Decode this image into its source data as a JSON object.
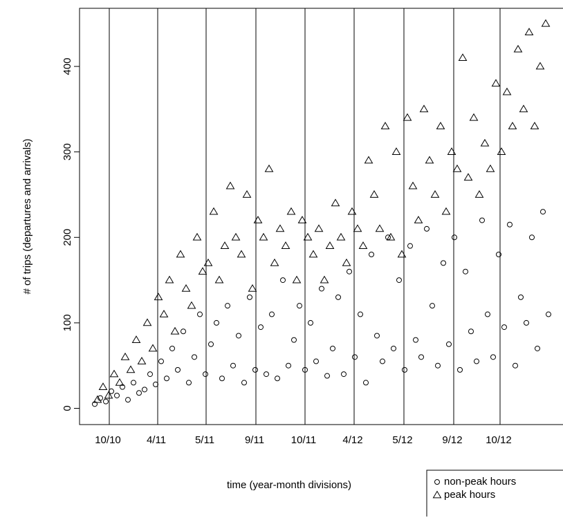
{
  "chart_data": {
    "type": "scatter",
    "x_label": "time (year-month divisions)",
    "y_label": "# of trips (departures and arrivals)",
    "xlim": [
      0,
      700
    ],
    "ylim": [
      -19,
      468
    ],
    "xticks": [
      {
        "value": 43,
        "label": "10/10"
      },
      {
        "value": 113,
        "label": "4/11"
      },
      {
        "value": 183,
        "label": "5/11"
      },
      {
        "value": 255,
        "label": "9/11"
      },
      {
        "value": 326,
        "label": "10/11"
      },
      {
        "value": 397,
        "label": "4/12"
      },
      {
        "value": 469,
        "label": "5/12"
      },
      {
        "value": 541,
        "label": "9/12"
      },
      {
        "value": 608,
        "label": "10/12"
      }
    ],
    "yticks": [
      0,
      100,
      200,
      300,
      400
    ],
    "grid": "vertical",
    "legend": "bottom-right",
    "series": [
      {
        "name": "non-peak hours",
        "color": "#000000",
        "marker": "circle",
        "x": [
          22,
          30,
          38,
          46,
          54,
          62,
          70,
          78,
          86,
          94,
          102,
          110,
          118,
          126,
          134,
          142,
          150,
          158,
          166,
          174,
          182,
          190,
          198,
          206,
          214,
          222,
          230,
          238,
          246,
          254,
          262,
          270,
          278,
          286,
          294,
          302,
          310,
          318,
          326,
          334,
          342,
          350,
          358,
          366,
          374,
          382,
          390,
          398,
          406,
          414,
          422,
          430,
          438,
          446,
          454,
          462,
          470,
          478,
          486,
          494,
          502,
          510,
          518,
          526,
          534,
          542,
          550,
          558,
          566,
          574,
          582,
          590,
          598,
          606,
          614,
          622,
          630,
          638,
          646,
          654,
          662,
          670,
          678
        ],
        "values": [
          5,
          12,
          8,
          20,
          15,
          25,
          10,
          30,
          18,
          22,
          40,
          28,
          55,
          35,
          70,
          45,
          90,
          30,
          60,
          110,
          40,
          75,
          100,
          35,
          120,
          50,
          85,
          30,
          130,
          45,
          95,
          40,
          110,
          35,
          150,
          50,
          80,
          120,
          45,
          100,
          55,
          140,
          38,
          70,
          130,
          40,
          160,
          60,
          110,
          30,
          180,
          85,
          55,
          200,
          70,
          150,
          45,
          190,
          80,
          60,
          210,
          120,
          50,
          170,
          75,
          200,
          45,
          160,
          90,
          55,
          220,
          110,
          60,
          180,
          95,
          215,
          50,
          130,
          100,
          200,
          70,
          230,
          110
        ]
      },
      {
        "name": "peak hours",
        "color": "#000000",
        "marker": "triangle",
        "x": [
          26,
          34,
          42,
          50,
          58,
          66,
          74,
          82,
          90,
          98,
          106,
          114,
          122,
          130,
          138,
          146,
          154,
          162,
          170,
          178,
          186,
          194,
          202,
          210,
          218,
          226,
          234,
          242,
          250,
          258,
          266,
          274,
          282,
          290,
          298,
          306,
          314,
          322,
          330,
          338,
          346,
          354,
          362,
          370,
          378,
          386,
          394,
          402,
          410,
          418,
          426,
          434,
          442,
          450,
          458,
          466,
          474,
          482,
          490,
          498,
          506,
          514,
          522,
          530,
          538,
          546,
          554,
          562,
          570,
          578,
          586,
          594,
          602,
          610,
          618,
          626,
          634,
          642,
          650,
          658,
          666,
          674
        ],
        "values": [
          10,
          25,
          15,
          40,
          30,
          60,
          45,
          80,
          55,
          100,
          70,
          130,
          110,
          150,
          90,
          180,
          140,
          120,
          200,
          160,
          170,
          230,
          150,
          190,
          260,
          200,
          180,
          250,
          140,
          220,
          200,
          280,
          170,
          210,
          190,
          230,
          150,
          220,
          200,
          180,
          210,
          150,
          190,
          240,
          200,
          170,
          230,
          210,
          190,
          290,
          250,
          210,
          330,
          200,
          300,
          180,
          340,
          260,
          220,
          350,
          290,
          250,
          330,
          230,
          300,
          280,
          410,
          270,
          340,
          250,
          310,
          280,
          380,
          300,
          370,
          330,
          420,
          350,
          440,
          330,
          400,
          450
        ]
      }
    ]
  }
}
